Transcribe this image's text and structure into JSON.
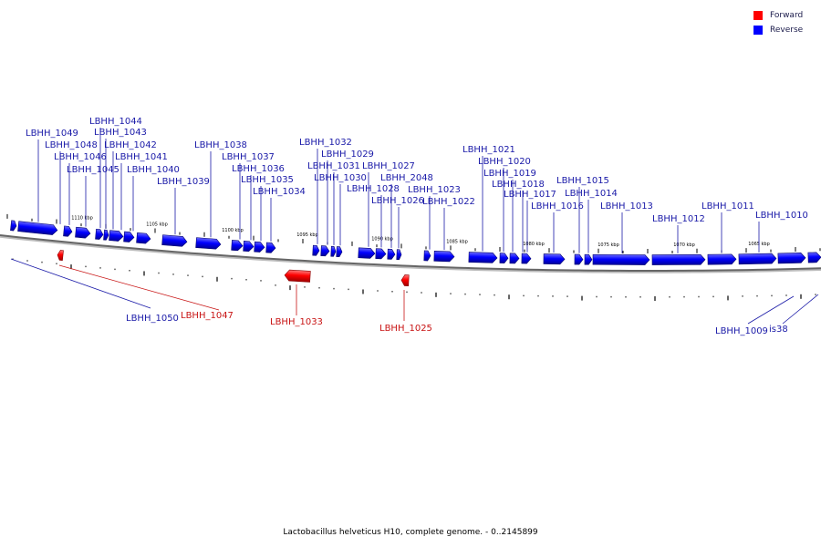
{
  "caption": "Lactobacillus helveticus H10, complete genome. - 0..2145899",
  "legend": {
    "forward_label": "Forward",
    "reverse_label": "Reverse",
    "forward_color": "#ff0000",
    "reverse_color": "#0000ff"
  },
  "scale_labels": [
    "1110 kbp",
    "1105 kbp",
    "1100 kbp",
    "1095 kbp",
    "1090 kbp",
    "1085 kbp",
    "1080 kbp",
    "1075 kbp",
    "1070 kbp",
    "1065 kbp"
  ],
  "reverse_genes": [
    "LBHH_1049",
    "LBHH_1048",
    "LBHH_1046",
    "LBHH_1045",
    "LBHH_1044",
    "LBHH_1043",
    "LBHH_1042",
    "LBHH_1041",
    "LBHH_1040",
    "LBHH_1039",
    "LBHH_1038",
    "LBHH_1037",
    "LBHH_1036",
    "LBHH_1035",
    "LBHH_1034",
    "LBHH_1032",
    "LBHH_1029",
    "LBHH_1031",
    "LBHH_1030",
    "LBHH_1027",
    "LBHH_1028",
    "LBHH_2048",
    "LBHH_1026",
    "LBHH_1023",
    "LBHH_1022",
    "LBHH_1021",
    "LBHH_1020",
    "LBHH_1019",
    "LBHH_1018",
    "LBHH_1017",
    "LBHH_1016",
    "LBHH_1015",
    "LBHH_1014",
    "LBHH_1013",
    "LBHH_1012",
    "LBHH_1011",
    "LBHH_1010",
    "LBHH_1050",
    "LBHH_1009",
    "is38"
  ],
  "forward_genes": [
    "LBHH_1047",
    "LBHH_1033",
    "LBHH_1025"
  ]
}
